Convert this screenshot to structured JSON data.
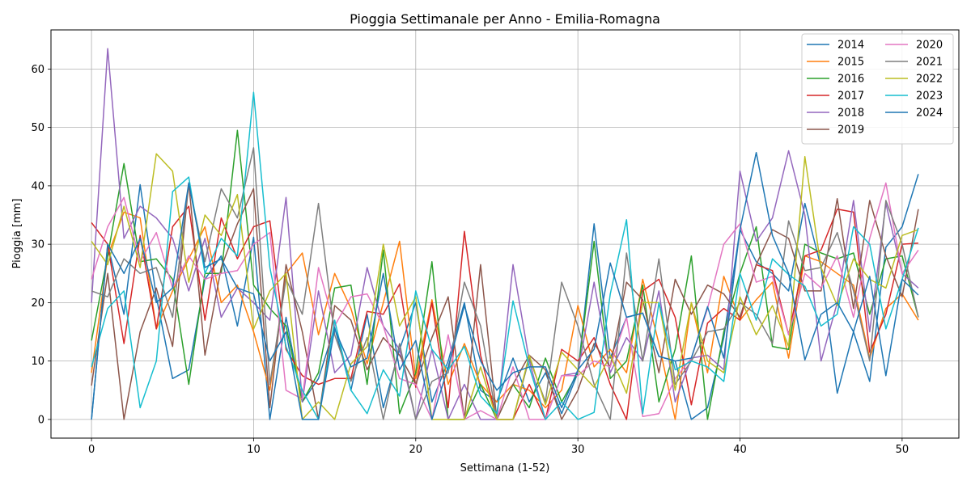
{
  "chart_data": {
    "type": "line",
    "title": "Pioggia Settimanale per Anno - Emilia-Romagna",
    "xlabel": "Settimana (1-52)",
    "ylabel": "Pioggia [mm]",
    "xlim": [
      -2.5,
      53.5
    ],
    "ylim": [
      -3.2,
      66.7
    ],
    "x_ticks": [
      0,
      10,
      20,
      30,
      40,
      50
    ],
    "y_ticks": [
      0,
      10,
      20,
      30,
      40,
      50,
      60
    ],
    "grid": true,
    "legend": {
      "placement": "top-right",
      "columns": 2
    },
    "x": [
      0,
      1,
      2,
      3,
      4,
      5,
      6,
      7,
      8,
      9,
      10,
      11,
      12,
      13,
      14,
      15,
      16,
      17,
      18,
      19,
      20,
      21,
      22,
      23,
      24,
      25,
      26,
      27,
      28,
      29,
      30,
      31,
      32,
      33,
      34,
      35,
      36,
      37,
      38,
      39,
      40,
      41,
      42,
      43,
      44,
      45,
      46,
      47,
      48,
      49,
      50,
      51
    ],
    "series": [
      {
        "name": "2014",
        "color": "#1f77b4",
        "values": [
          0,
          30,
          18,
          40.2,
          21,
          7,
          8.5,
          24,
          28,
          16,
          31.2,
          0,
          17.5,
          3,
          7,
          15.8,
          5,
          18,
          2,
          12,
          20,
          3,
          10,
          20,
          5,
          3,
          10.5,
          3,
          8,
          1,
          8,
          33.5,
          10.5,
          17.5,
          18.2,
          10.8,
          10,
          0,
          2,
          14,
          32.5,
          27,
          25,
          22,
          37,
          26,
          4.5,
          15,
          6.5,
          29.5,
          33,
          42
        ]
      },
      {
        "name": "2015",
        "color": "#ff7f0e",
        "values": [
          8,
          28,
          35.5,
          34.5,
          15.5,
          22,
          27.5,
          33,
          20,
          23,
          15,
          5,
          25,
          28.5,
          14.5,
          25,
          19,
          9.5,
          20,
          30.5,
          7,
          20.5,
          6,
          13,
          6,
          3,
          6,
          5,
          2,
          5,
          19.5,
          9,
          12,
          8,
          24,
          13,
          0,
          20,
          8,
          24.5,
          17,
          20.5,
          23.5,
          10.5,
          28,
          27,
          25,
          23,
          10.5,
          19,
          21.5,
          17
        ]
      },
      {
        "name": "2016",
        "color": "#2ca02c",
        "values": [
          13.5,
          28,
          43.8,
          27,
          27.5,
          24,
          6,
          25,
          25,
          49.5,
          23,
          19,
          16,
          3,
          8,
          22.5,
          23,
          6,
          29,
          1,
          8,
          27,
          0,
          0,
          6,
          0,
          6,
          2,
          10.5,
          3,
          8,
          30.5,
          7,
          10,
          23,
          3,
          12,
          28,
          0,
          15,
          25,
          33,
          12.5,
          12,
          30,
          28.5,
          27.5,
          28.5,
          18,
          27.5,
          28,
          17.5
        ]
      },
      {
        "name": "2017",
        "color": "#d62728",
        "values": [
          33.7,
          30,
          13,
          31.5,
          15.5,
          33,
          36.5,
          17,
          34.5,
          27.5,
          33,
          34,
          12,
          7.5,
          6,
          7,
          7,
          18.5,
          18,
          23.2,
          5.5,
          20,
          2,
          32.2,
          11,
          0,
          0,
          6,
          0,
          12,
          10,
          14,
          6,
          0,
          22,
          24,
          17.5,
          2.5,
          16.5,
          19,
          17,
          26.5,
          25.5,
          14.5,
          28,
          29,
          36,
          35.5,
          11.5,
          18,
          30,
          30.2
        ]
      },
      {
        "name": "2018",
        "color": "#9467bd",
        "values": [
          20,
          63.5,
          31,
          36.5,
          34.5,
          31,
          22,
          31,
          17.5,
          22.5,
          20,
          17,
          38,
          3,
          22,
          8,
          11,
          26,
          16,
          12,
          0,
          12,
          0,
          6,
          0,
          0,
          26.5,
          10,
          0,
          7.5,
          8,
          23.5,
          8,
          14,
          10,
          22,
          3,
          10.5,
          11,
          8.5,
          42.5,
          30.5,
          34.5,
          46,
          35,
          10,
          20,
          37.5,
          15,
          37,
          25,
          22.5
        ]
      },
      {
        "name": "2019",
        "color": "#8c564b",
        "values": [
          5.8,
          25,
          0,
          15,
          22.5,
          12.5,
          40.5,
          11,
          26,
          33.5,
          39.5,
          2,
          26.5,
          15,
          0,
          19.5,
          17,
          8.5,
          14,
          11,
          6,
          14,
          21,
          0,
          26.5,
          0,
          6,
          11,
          8.5,
          0,
          5,
          13,
          9,
          23.5,
          20.5,
          8,
          24,
          18,
          23,
          21.5,
          17.5,
          26.5,
          32.5,
          31,
          22,
          22,
          37.8,
          19,
          37.5,
          28,
          21,
          36
        ]
      },
      {
        "name": "2020",
        "color": "#e377c2",
        "values": [
          24,
          33,
          38,
          27,
          32,
          22.5,
          28,
          24,
          25,
          25.5,
          30,
          32,
          5,
          3.5,
          26,
          16,
          21,
          21.5,
          16,
          7,
          6,
          0,
          14.5,
          0,
          1.5,
          0,
          9,
          0,
          0,
          7.5,
          7.5,
          10,
          9,
          17.5,
          0.5,
          1,
          7,
          10.5,
          19,
          30,
          33.5,
          23.5,
          24.5,
          14.5,
          25,
          22.5,
          28,
          17.5,
          31,
          40.5,
          25,
          29
        ]
      },
      {
        "name": "2021",
        "color": "#7f7f7f",
        "values": [
          22,
          21,
          27.5,
          25,
          26,
          17.5,
          40.5,
          27,
          39.5,
          34.5,
          46.5,
          6,
          24,
          18,
          37,
          14.5,
          6.5,
          14,
          0,
          13,
          0,
          6.5,
          8,
          23.5,
          16,
          0,
          0,
          10.5,
          3,
          23.5,
          16,
          6,
          0,
          28.5,
          10,
          27.5,
          6,
          10,
          15,
          15.5,
          20,
          18,
          13,
          34,
          25.5,
          26,
          32,
          22,
          10,
          37.5,
          30,
          17.5
        ]
      },
      {
        "name": "2022",
        "color": "#bcbd22",
        "values": [
          30.5,
          26.5,
          36.5,
          26,
          45.5,
          42.5,
          23.5,
          35,
          31.5,
          38.5,
          15.5,
          22,
          25,
          0,
          3,
          0,
          9.5,
          12.5,
          30,
          16,
          21,
          0,
          0,
          0,
          9,
          0,
          0,
          11,
          2.5,
          11.5,
          8.5,
          5.5,
          11,
          4.5,
          20,
          20,
          5,
          20,
          10,
          8,
          21,
          14.5,
          19.5,
          12.5,
          45,
          26,
          19.5,
          27.5,
          24,
          22.5,
          31.5,
          32.5
        ]
      },
      {
        "name": "2023",
        "color": "#17becf",
        "values": [
          9,
          19,
          22,
          2,
          10,
          39,
          41.5,
          25,
          31,
          28,
          56,
          26,
          12.5,
          5,
          0,
          17,
          5,
          1,
          8.5,
          4,
          22,
          12,
          8.5,
          12.5,
          4,
          1,
          20.3,
          9,
          0,
          3,
          0,
          1.2,
          21.5,
          34.2,
          1,
          20,
          8.5,
          10,
          9,
          6.5,
          25,
          17,
          27.5,
          24.8,
          22.8,
          16,
          18,
          33,
          30,
          15.5,
          24,
          32.8
        ]
      },
      {
        "name": "2024",
        "color": "#1f77b4",
        "values": [
          0,
          30,
          25,
          31,
          20,
          22.5,
          40.5,
          26,
          27.5,
          22.5,
          21.5,
          10,
          15,
          0,
          0,
          15.5,
          9,
          10.5,
          25,
          8.5,
          13.5,
          0,
          9,
          19.5,
          10,
          5,
          8,
          9,
          9,
          2,
          8.5,
          12,
          26.8,
          17.5,
          18.2,
          10.8,
          10,
          10.5,
          19.3,
          10.5,
          32.5,
          45.7,
          31.5,
          25,
          10.2,
          18,
          20,
          15,
          24.5,
          7.5,
          24,
          21.3
        ]
      }
    ]
  }
}
